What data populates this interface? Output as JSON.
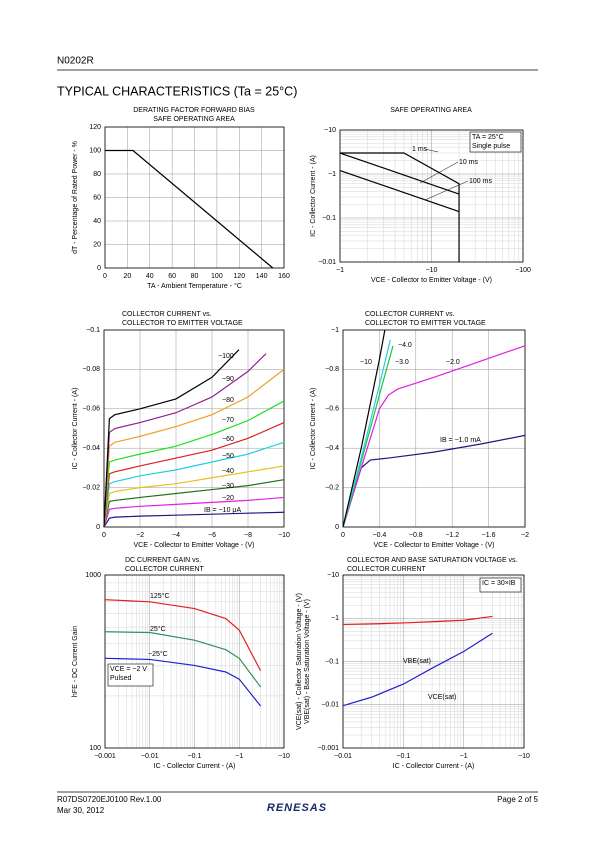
{
  "header": {
    "doc": "N0202R",
    "section": "TYPICAL CHARACTERISTICS (Ta = 25°C)"
  },
  "footer": {
    "doc_no": "R07DS0720EJ0100   Rev.1.00",
    "date": "Mar 30, 2012",
    "page": "Page 2 of 5",
    "logo": "RENESAS"
  },
  "chart_data": [
    {
      "type": "line",
      "title": [
        "DERATING FACTOR FORWARD BIAS",
        "SAFE OPERATING AREA"
      ],
      "xlabel": "TA - Ambient Temperature - °C",
      "ylabel": [
        "dT - Percentage of Rated Power - %"
      ],
      "xlim": [
        0,
        160
      ],
      "ylim": [
        0,
        120
      ],
      "xticks": [
        0,
        20,
        40,
        60,
        80,
        100,
        120,
        140,
        160
      ],
      "yticks": [
        0,
        20,
        40,
        60,
        80,
        100,
        120
      ],
      "grid": true,
      "series": [
        {
          "color": "#000000",
          "x": [
            0,
            25,
            150
          ],
          "values": [
            100,
            100,
            0
          ]
        }
      ]
    },
    {
      "type": "line",
      "title": [
        "SAFE OPERATING AREA"
      ],
      "xlabel": "VCE - Collector to Emitter Voltage - (V)",
      "ylabel": [
        "IC - Collector Current - (A)"
      ],
      "xlog": true,
      "ylog": true,
      "xlim": [
        -1,
        -100
      ],
      "ylim": [
        -0.01,
        -10
      ],
      "xticks": [
        {
          "value": -1,
          "label": "−1"
        },
        {
          "value": -10,
          "label": "−10"
        },
        {
          "value": -100,
          "label": "−100"
        }
      ],
      "yticks": [
        {
          "value": -0.01,
          "label": "−0.01"
        },
        {
          "value": -0.1,
          "label": "−0.1"
        },
        {
          "value": -1,
          "label": "−1"
        },
        {
          "value": -10,
          "label": "−10"
        }
      ],
      "grid": true,
      "note": [
        "TA = 25°C",
        "Single pulse"
      ],
      "series": [
        {
          "name": "1 ms",
          "color": "#000000",
          "x": [
            -1,
            -5,
            -20,
            -20
          ],
          "values": [
            -3,
            -3,
            -0.6,
            -0.01
          ]
        },
        {
          "name": "10 ms",
          "color": "#000000",
          "x": [
            -1,
            -20
          ],
          "values": [
            -3,
            -0.35
          ]
        },
        {
          "name": "100 ms",
          "color": "#000000",
          "x": [
            -1,
            -20
          ],
          "values": [
            -1.2,
            -0.14
          ]
        }
      ]
    },
    {
      "type": "line",
      "title": [
        "COLLECTOR CURRENT vs.",
        "COLLECTOR TO EMITTER VOLTAGE"
      ],
      "xlabel": "VCE - Collector to Emitter Voltage - (V)",
      "ylabel": [
        "IC - Collector Current - (A)"
      ],
      "xlim": [
        0,
        -10
      ],
      "ylim": [
        0,
        -0.1
      ],
      "xticks": [
        0,
        {
          "value": -2,
          "label": "−2"
        },
        {
          "value": -4,
          "label": "−4"
        },
        {
          "value": -6,
          "label": "−6"
        },
        {
          "value": -8,
          "label": "−8"
        },
        {
          "value": -10,
          "label": "−10"
        }
      ],
      "yticks": [
        0,
        {
          "value": -0.02,
          "label": "−0.02"
        },
        {
          "value": -0.04,
          "label": "−0.04"
        },
        {
          "value": -0.06,
          "label": "−0.06"
        },
        {
          "value": -0.08,
          "label": "−0.08"
        },
        {
          "value": -0.1,
          "label": "−0.1"
        }
      ],
      "grid": true,
      "series": [
        {
          "name": "IB = −10 μA",
          "color": "#1a1a80",
          "x": [
            0,
            -0.3,
            -0.6,
            -2,
            -4,
            -6,
            -8,
            -10
          ],
          "values": [
            0,
            -0.0045,
            -0.005,
            -0.0055,
            -0.006,
            -0.0065,
            -0.007,
            -0.0075
          ]
        },
        {
          "name": "−20",
          "color": "#e020e0",
          "x": [
            0,
            -0.3,
            -0.6,
            -2,
            -4,
            -6,
            -8,
            -10
          ],
          "values": [
            0,
            -0.009,
            -0.0095,
            -0.0105,
            -0.0115,
            -0.0125,
            -0.0135,
            -0.015
          ]
        },
        {
          "name": "−30",
          "color": "#207020",
          "x": [
            0,
            -0.3,
            -0.6,
            -2,
            -4,
            -6,
            -8,
            -10
          ],
          "values": [
            0,
            -0.013,
            -0.0135,
            -0.015,
            -0.017,
            -0.019,
            -0.021,
            -0.024
          ]
        },
        {
          "name": "−40",
          "color": "#e8c020",
          "x": [
            0,
            -0.3,
            -0.6,
            -2,
            -4,
            -6,
            -8,
            -10
          ],
          "values": [
            0,
            -0.017,
            -0.018,
            -0.02,
            -0.022,
            -0.025,
            -0.028,
            -0.031
          ]
        },
        {
          "name": "−50",
          "color": "#20d0e0",
          "x": [
            0,
            -0.3,
            -0.6,
            -2,
            -4,
            -6,
            -8,
            -10
          ],
          "values": [
            0,
            -0.022,
            -0.023,
            -0.026,
            -0.029,
            -0.033,
            -0.037,
            -0.043
          ]
        },
        {
          "name": "−60",
          "color": "#e02020",
          "x": [
            0,
            -0.3,
            -0.6,
            -2,
            -4,
            -6,
            -8,
            -10
          ],
          "values": [
            0,
            -0.027,
            -0.028,
            -0.031,
            -0.035,
            -0.039,
            -0.045,
            -0.053
          ]
        },
        {
          "name": "−70",
          "color": "#20e020",
          "x": [
            0,
            -0.3,
            -0.6,
            -2,
            -4,
            -6,
            -8,
            -10
          ],
          "values": [
            0,
            -0.033,
            -0.034,
            -0.037,
            -0.041,
            -0.047,
            -0.054,
            -0.064
          ]
        },
        {
          "name": "−80",
          "color": "#f0a020",
          "x": [
            0,
            -0.3,
            -0.6,
            -2,
            -4,
            -6,
            -8,
            -10
          ],
          "values": [
            0,
            -0.041,
            -0.043,
            -0.046,
            -0.051,
            -0.057,
            -0.066,
            -0.08
          ]
        },
        {
          "name": "−90",
          "color": "#902090",
          "x": [
            0,
            -0.3,
            -0.6,
            -2,
            -4,
            -6,
            -8,
            -9
          ],
          "values": [
            0,
            -0.048,
            -0.05,
            -0.053,
            -0.058,
            -0.066,
            -0.079,
            -0.088
          ]
        },
        {
          "name": "−100",
          "color": "#000000",
          "x": [
            0,
            -0.3,
            -0.6,
            -2,
            -4,
            -6,
            -7.5
          ],
          "values": [
            0,
            -0.055,
            -0.057,
            -0.06,
            -0.065,
            -0.076,
            -0.09
          ]
        }
      ]
    },
    {
      "type": "line",
      "title": [
        "COLLECTOR CURRENT vs.",
        "COLLECTOR TO EMITTER VOLTAGE"
      ],
      "xlabel": "VCE - Collector to Emitter Voltage - (V)",
      "ylabel": [
        "IC - Collector Current - (A)"
      ],
      "xlim": [
        0,
        -2
      ],
      "ylim": [
        0,
        -1
      ],
      "xticks": [
        0,
        {
          "value": -0.4,
          "label": "−0.4"
        },
        {
          "value": -0.8,
          "label": "−0.8"
        },
        {
          "value": -1.2,
          "label": "−1.2"
        },
        {
          "value": -1.6,
          "label": "−1.6"
        },
        {
          "value": -2,
          "label": "−2"
        }
      ],
      "yticks": [
        0,
        {
          "value": -0.2,
          "label": "−0.2"
        },
        {
          "value": -0.4,
          "label": "−0.4"
        },
        {
          "value": -0.6,
          "label": "−0.6"
        },
        {
          "value": -0.8,
          "label": "−0.8"
        },
        {
          "value": -1,
          "label": "−1"
        }
      ],
      "grid": true,
      "series": [
        {
          "name": "IB = −1.0 mA",
          "color": "#1a1a80",
          "x": [
            0,
            -0.1,
            -0.2,
            -0.3,
            -0.5,
            -1,
            -1.5,
            -2
          ],
          "values": [
            0,
            -0.15,
            -0.3,
            -0.34,
            -0.35,
            -0.38,
            -0.42,
            -0.465
          ]
        },
        {
          "name": "−2.0",
          "color": "#e020e0",
          "x": [
            0,
            -0.2,
            -0.4,
            -0.5,
            -0.6,
            -1,
            -1.5,
            -2
          ],
          "values": [
            0,
            -0.3,
            -0.6,
            -0.67,
            -0.7,
            -0.76,
            -0.84,
            -0.92
          ]
        },
        {
          "name": "−3.0",
          "color": "#20c040",
          "x": [
            0,
            -0.2,
            -0.4,
            -0.55
          ],
          "values": [
            0,
            -0.33,
            -0.67,
            -0.92
          ]
        },
        {
          "name": "−4.0",
          "color": "#20d0e0",
          "x": [
            0,
            -0.2,
            -0.4,
            -0.52
          ],
          "values": [
            0,
            -0.35,
            -0.72,
            -0.95
          ]
        },
        {
          "name": "−10",
          "color": "#000000",
          "x": [
            0,
            -0.2,
            -0.4,
            -0.46
          ],
          "values": [
            0,
            -0.4,
            -0.85,
            -1
          ]
        }
      ]
    },
    {
      "type": "line",
      "title": [
        "DC CURRENT GAIN vs.",
        "COLLECTOR CURRENT"
      ],
      "xlabel": "IC - Collector Current - (A)",
      "ylabel": [
        "hFE - DC Current Gain"
      ],
      "xlog": true,
      "ylog": true,
      "xlim": [
        -0.001,
        -10
      ],
      "ylim": [
        100,
        1000
      ],
      "xticks": [
        {
          "value": -0.001,
          "label": "−0.001"
        },
        {
          "value": -0.01,
          "label": "−0.01"
        },
        {
          "value": -0.1,
          "label": "−0.1"
        },
        {
          "value": -1,
          "label": "−1"
        },
        {
          "value": -10,
          "label": "−10"
        }
      ],
      "yticks": [
        100,
        1000
      ],
      "grid": true,
      "note": [
        "VCE = −2 V",
        "Pulsed"
      ],
      "series": [
        {
          "name": "125°C",
          "color": "#e02020",
          "x": [
            -0.001,
            -0.01,
            -0.1,
            -0.5,
            -1,
            -3
          ],
          "values": [
            720,
            700,
            640,
            560,
            480,
            280
          ]
        },
        {
          "name": "25°C",
          "color": "#309060",
          "x": [
            -0.001,
            -0.01,
            -0.1,
            -0.5,
            -1,
            -3
          ],
          "values": [
            470,
            465,
            420,
            370,
            330,
            225
          ]
        },
        {
          "name": "−25°C",
          "color": "#2020d0",
          "x": [
            -0.001,
            -0.01,
            -0.1,
            -0.5,
            -1,
            -3
          ],
          "values": [
            330,
            325,
            300,
            275,
            250,
            175
          ]
        }
      ]
    },
    {
      "type": "line",
      "title": [
        "COLLECTOR AND BASE SATURATION VOLTAGE vs.",
        "COLLECTOR CURRENT"
      ],
      "xlabel": "IC - Collector Current - (A)",
      "ylabel": [
        "VCE(sat) - Collector Saturation Voltage - (V)",
        "VBE(sat) - Base Saturation Voltage - (V)"
      ],
      "xlog": true,
      "ylog": true,
      "xlim": [
        -0.01,
        -10
      ],
      "ylim": [
        -0.001,
        -10
      ],
      "xticks": [
        {
          "value": -0.01,
          "label": "−0.01"
        },
        {
          "value": -0.1,
          "label": "−0.1"
        },
        {
          "value": -1,
          "label": "−1"
        },
        {
          "value": -10,
          "label": "−10"
        }
      ],
      "yticks": [
        {
          "value": -0.001,
          "label": "−0.001"
        },
        {
          "value": -0.01,
          "label": "−0.01"
        },
        {
          "value": -0.1,
          "label": "−0.1"
        },
        {
          "value": -1,
          "label": "−1"
        },
        {
          "value": -10,
          "label": "−10"
        }
      ],
      "grid": true,
      "note": [
        "IC = 30×IB"
      ],
      "series": [
        {
          "name": "VBE(sat)",
          "color": "#e02020",
          "x": [
            -0.01,
            -0.03,
            -0.1,
            -0.3,
            -1,
            -3
          ],
          "values": [
            -0.72,
            -0.74,
            -0.78,
            -0.83,
            -0.9,
            -1.1
          ]
        },
        {
          "name": "VCE(sat)",
          "color": "#2020d0",
          "x": [
            -0.01,
            -0.03,
            -0.1,
            -0.3,
            -1,
            -3
          ],
          "values": [
            -0.0095,
            -0.015,
            -0.03,
            -0.07,
            -0.17,
            -0.45
          ]
        }
      ]
    }
  ]
}
